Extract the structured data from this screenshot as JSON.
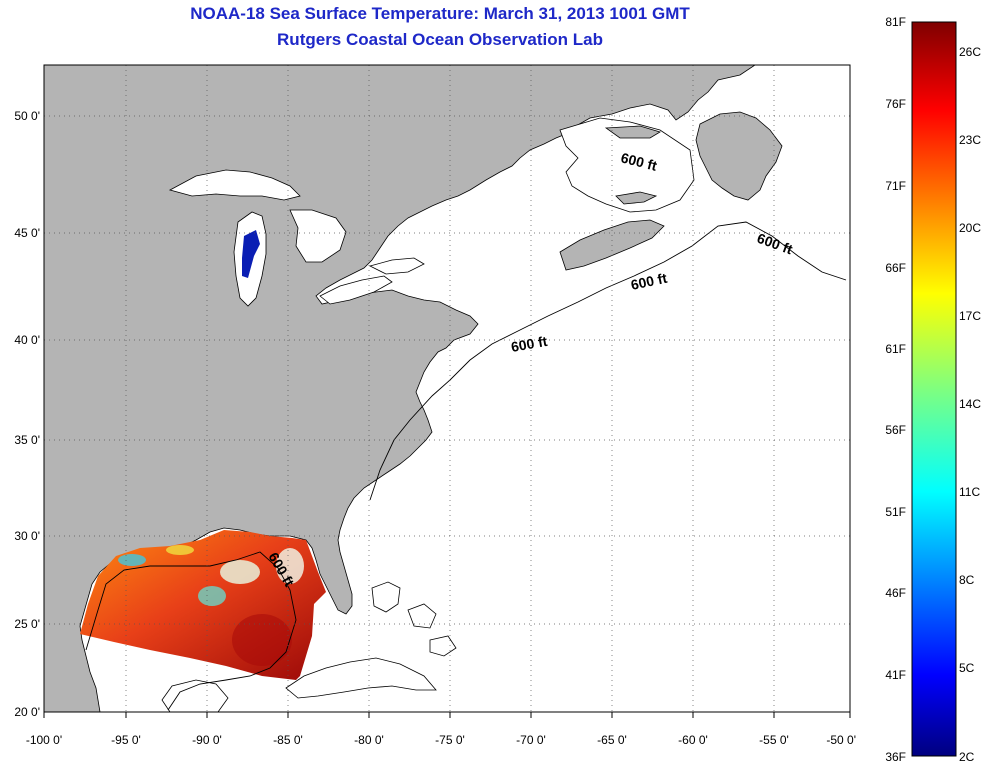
{
  "title": "NOAA-18 Sea Surface Temperature:  March 31, 2013 1001 GMT",
  "subtitle": "Rutgers Coastal Ocean Observation Lab",
  "map": {
    "lon_range": [
      -100,
      -50
    ],
    "lat_range": [
      20,
      52
    ],
    "lon_ticks": [
      "-100 0'",
      "-95 0'",
      "-90 0'",
      "-85 0'",
      "-80 0'",
      "-75 0'",
      "-70 0'",
      "-65 0'",
      "-60 0'",
      "-55 0'",
      "-50 0'"
    ],
    "lat_ticks": [
      "20 0'",
      "25 0'",
      "30 0'",
      "35 0'",
      "40 0'",
      "45 0'",
      "50 0'"
    ],
    "contour_labels": [
      "600 ft",
      "600 ft",
      "600 ft",
      "600 ft",
      "600 ft"
    ],
    "land_color": "#b4b4b4",
    "grid": "dotted"
  },
  "colorbar": {
    "fahrenheit": [
      "81F",
      "76F",
      "71F",
      "66F",
      "61F",
      "56F",
      "51F",
      "46F",
      "41F",
      "36F"
    ],
    "celsius": [
      "26C",
      "23C",
      "20C",
      "17C",
      "14C",
      "11C",
      "8C",
      "5C",
      "2C"
    ],
    "range_f": [
      36,
      81
    ],
    "colormap": "jet"
  }
}
